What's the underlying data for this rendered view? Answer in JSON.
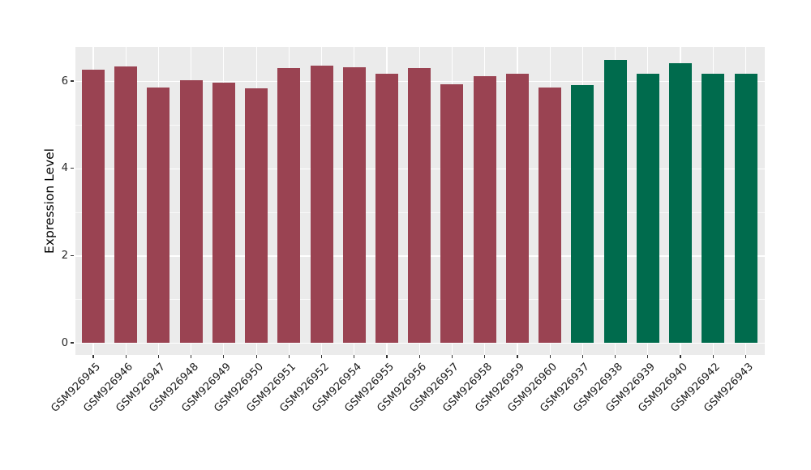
{
  "chart_data": {
    "type": "bar",
    "title": "",
    "xlabel": "",
    "ylabel": "Expression Level",
    "legend": "none",
    "categories": [
      "GSM926945",
      "GSM926946",
      "GSM926947",
      "GSM926948",
      "GSM926949",
      "GSM926950",
      "GSM926951",
      "GSM926952",
      "GSM926954",
      "GSM926955",
      "GSM926956",
      "GSM926957",
      "GSM926958",
      "GSM926959",
      "GSM926960",
      "GSM926937",
      "GSM926938",
      "GSM926939",
      "GSM926940",
      "GSM926942",
      "GSM926943"
    ],
    "values": [
      6.26,
      6.34,
      5.86,
      6.02,
      5.96,
      5.84,
      6.3,
      6.36,
      6.32,
      6.16,
      6.3,
      5.93,
      6.12,
      6.16,
      5.85,
      5.91,
      6.48,
      6.17,
      6.4,
      6.16,
      6.17
    ],
    "groups": [
      "A",
      "A",
      "A",
      "A",
      "A",
      "A",
      "A",
      "A",
      "A",
      "A",
      "A",
      "A",
      "A",
      "A",
      "A",
      "B",
      "B",
      "B",
      "B",
      "B",
      "B"
    ],
    "group_colors": {
      "A": "#9A4352",
      "B": "#006B4D"
    },
    "yticks": [
      0,
      2,
      4,
      6
    ],
    "yticks_minor": [
      1,
      3,
      5
    ],
    "ylim": [
      -0.3,
      6.78
    ],
    "grid": "on",
    "style_colors": {
      "panel_background": "#EBEBEB",
      "grid_major": "#FFFFFF",
      "grid_minor": "#FFFFFF",
      "tick_mark": "#333333",
      "tick_label": "#262626",
      "axis_title": "#000000",
      "figure_background": "#FFFFFF"
    }
  }
}
